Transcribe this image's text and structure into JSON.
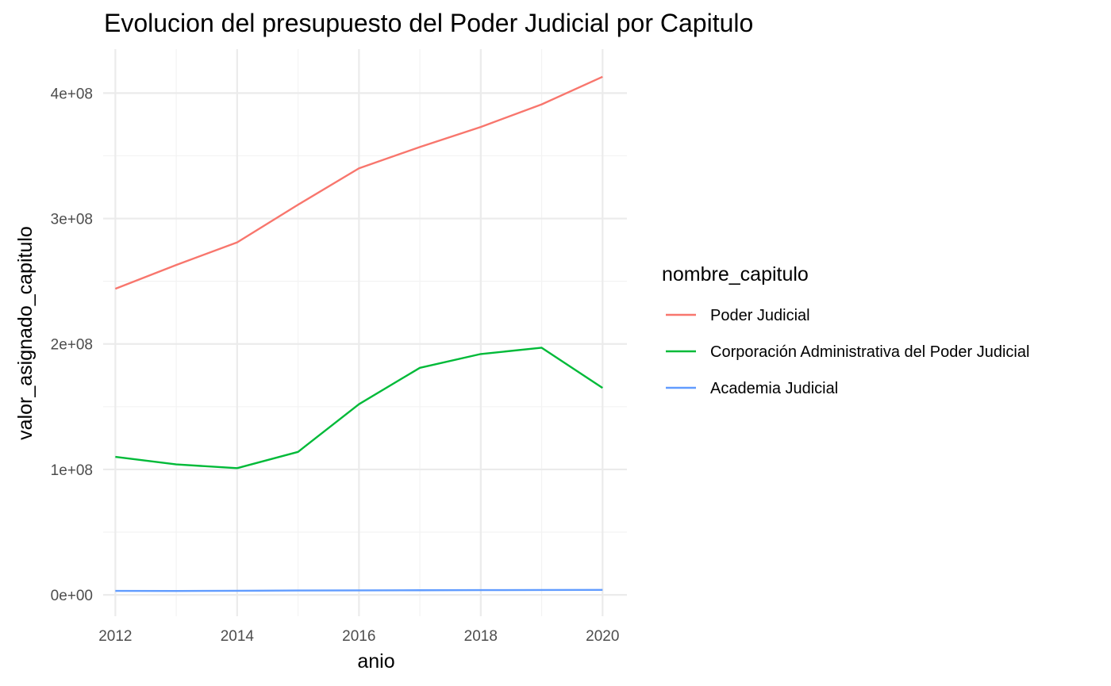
{
  "chart_data": {
    "type": "line",
    "title": "Evolucion del presupuesto del Poder Judicial por Capitulo",
    "xlabel": "anio",
    "ylabel": "valor_asignado_capitulo",
    "x": [
      2012,
      2013,
      2014,
      2015,
      2016,
      2017,
      2018,
      2019,
      2020
    ],
    "x_ticks": [
      2012,
      2014,
      2016,
      2018,
      2020
    ],
    "x_tick_labels": [
      "2012",
      "2014",
      "2016",
      "2018",
      "2020"
    ],
    "y_ticks": [
      0,
      100000000,
      200000000,
      300000000,
      400000000
    ],
    "y_tick_labels": [
      "0e+00",
      "1e+08",
      "2e+08",
      "3e+08",
      "4e+08"
    ],
    "xlim": [
      2011.8,
      2020.4
    ],
    "ylim": [
      -17000000,
      435000000
    ],
    "grid": true,
    "legend": {
      "title": "nombre_capitulo",
      "position": "right"
    },
    "series": [
      {
        "name": "Poder Judicial",
        "color": "#F8766D",
        "values": [
          244000000,
          263000000,
          281000000,
          311000000,
          340000000,
          357000000,
          373000000,
          391000000,
          413000000
        ]
      },
      {
        "name": "Corporación Administrativa del Poder Judicial",
        "color": "#00BA38",
        "values": [
          110000000,
          104000000,
          101000000,
          114000000,
          152000000,
          181000000,
          192000000,
          197000000,
          165000000
        ]
      },
      {
        "name": "Academia Judicial",
        "color": "#619CFF",
        "values": [
          3200000,
          3100000,
          3300000,
          3500000,
          3600000,
          3700000,
          3800000,
          3900000,
          4000000
        ]
      }
    ]
  }
}
